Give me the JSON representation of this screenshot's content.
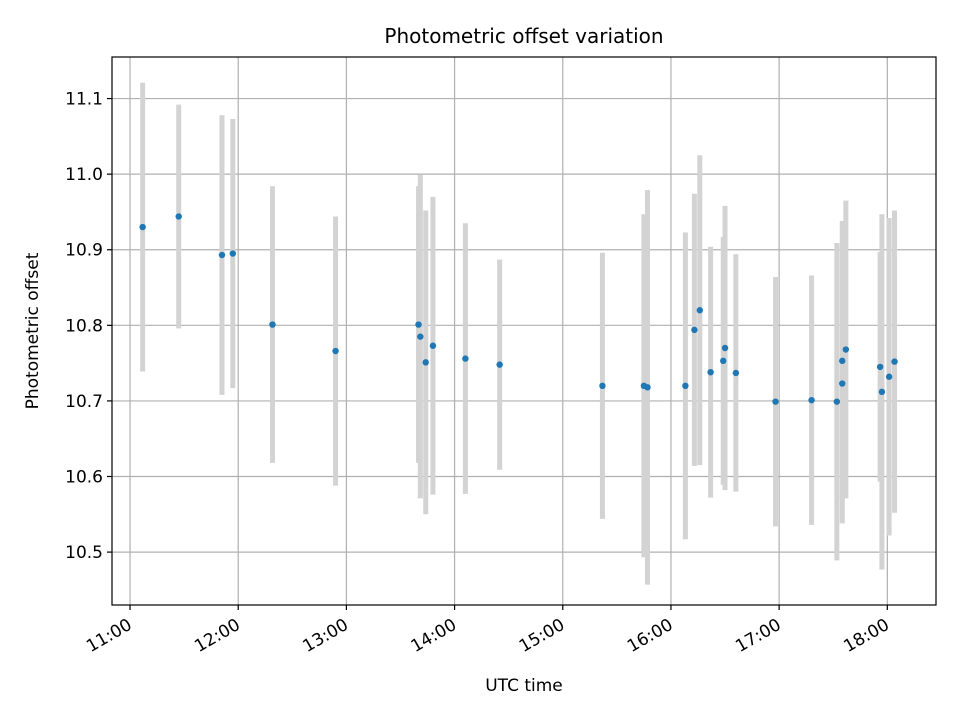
{
  "chart_data": {
    "type": "scatter",
    "title": "Photometric offset variation",
    "xlabel": "UTC time",
    "ylabel": "Photometric offset",
    "x_ticks": [
      "11:00",
      "12:00",
      "13:00",
      "14:00",
      "15:00",
      "16:00",
      "17:00",
      "18:00"
    ],
    "y_ticks": [
      "10.5",
      "10.6",
      "10.7",
      "10.8",
      "10.9",
      "11.0",
      "11.1"
    ],
    "xlim": [
      "10:50",
      "18:27"
    ],
    "ylim": [
      10.43,
      11.155
    ],
    "grid": true,
    "marker_color": "#1f77b4",
    "errorbar_color": "#d3d3d3",
    "series": [
      {
        "points": [
          {
            "x": "11:07",
            "y": 10.93,
            "err": 0.191
          },
          {
            "x": "11:27",
            "y": 10.944,
            "err": 0.148
          },
          {
            "x": "11:51",
            "y": 10.893,
            "err": 0.185
          },
          {
            "x": "11:57",
            "y": 10.895,
            "err": 0.178
          },
          {
            "x": "12:19",
            "y": 10.801,
            "err": 0.183
          },
          {
            "x": "12:54",
            "y": 10.766,
            "err": 0.178
          },
          {
            "x": "13:40",
            "y": 10.801,
            "err": 0.183
          },
          {
            "x": "13:41",
            "y": 10.785,
            "err": 0.214
          },
          {
            "x": "13:44",
            "y": 10.751,
            "err": 0.201
          },
          {
            "x": "13:48",
            "y": 10.773,
            "err": 0.197
          },
          {
            "x": "14:06",
            "y": 10.756,
            "err": 0.179
          },
          {
            "x": "14:25",
            "y": 10.748,
            "err": 0.139
          },
          {
            "x": "15:22",
            "y": 10.72,
            "err": 0.176
          },
          {
            "x": "15:45",
            "y": 10.72,
            "err": 0.227
          },
          {
            "x": "15:47",
            "y": 10.718,
            "err": 0.261
          },
          {
            "x": "16:08",
            "y": 10.72,
            "err": 0.203
          },
          {
            "x": "16:13",
            "y": 10.794,
            "err": 0.18
          },
          {
            "x": "16:16",
            "y": 10.82,
            "err": 0.205
          },
          {
            "x": "16:22",
            "y": 10.738,
            "err": 0.166
          },
          {
            "x": "16:29",
            "y": 10.753,
            "err": 0.164
          },
          {
            "x": "16:30",
            "y": 10.77,
            "err": 0.188
          },
          {
            "x": "16:36",
            "y": 10.737,
            "err": 0.157
          },
          {
            "x": "16:58",
            "y": 10.699,
            "err": 0.165
          },
          {
            "x": "17:18",
            "y": 10.701,
            "err": 0.165
          },
          {
            "x": "17:32",
            "y": 10.699,
            "err": 0.21
          },
          {
            "x": "17:35",
            "y": 10.753,
            "err": 0.185
          },
          {
            "x": "17:35",
            "y": 10.723,
            "err": 0.185
          },
          {
            "x": "17:37",
            "y": 10.768,
            "err": 0.197
          },
          {
            "x": "17:56",
            "y": 10.745,
            "err": 0.152
          },
          {
            "x": "17:57",
            "y": 10.712,
            "err": 0.235
          },
          {
            "x": "18:01",
            "y": 10.732,
            "err": 0.21
          },
          {
            "x": "18:04",
            "y": 10.752,
            "err": 0.2
          }
        ]
      }
    ]
  }
}
